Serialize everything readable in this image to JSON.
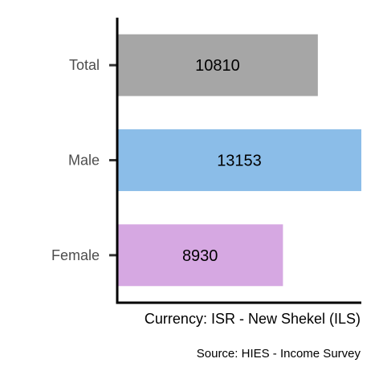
{
  "chart_data": {
    "type": "bar",
    "orientation": "horizontal",
    "categories": [
      "Total",
      "Male",
      "Female"
    ],
    "values": [
      10810,
      13153,
      8930
    ],
    "colors": [
      "#a6a6a6",
      "#8bbde8",
      "#d6a8e2"
    ],
    "xlabel": "Currency: ISR - New Shekel (ILS)",
    "ylabel": "",
    "caption": "Source:  HIES - Income Survey",
    "grid": false,
    "legend": "none"
  }
}
